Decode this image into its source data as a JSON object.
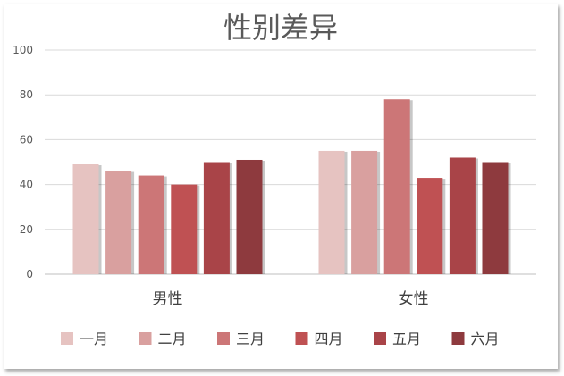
{
  "chart_data": {
    "type": "bar",
    "title": "性别差异",
    "categories": [
      "男性",
      "女性"
    ],
    "series": [
      {
        "name": "一月",
        "color": "#e6c3c1",
        "values": [
          49,
          55
        ]
      },
      {
        "name": "二月",
        "color": "#d9a09f",
        "values": [
          46,
          55
        ]
      },
      {
        "name": "三月",
        "color": "#cc7677",
        "values": [
          44,
          78
        ]
      },
      {
        "name": "四月",
        "color": "#bf5153",
        "values": [
          40,
          43
        ]
      },
      {
        "name": "五月",
        "color": "#a94448",
        "values": [
          50,
          52
        ]
      },
      {
        "name": "六月",
        "color": "#8e3a3e",
        "values": [
          51,
          50
        ]
      }
    ],
    "ylim": [
      0,
      100
    ],
    "yticks": [
      0,
      20,
      40,
      60,
      80,
      100
    ],
    "xlabel": "",
    "ylabel": "",
    "grid": true,
    "legend": "bottom"
  }
}
